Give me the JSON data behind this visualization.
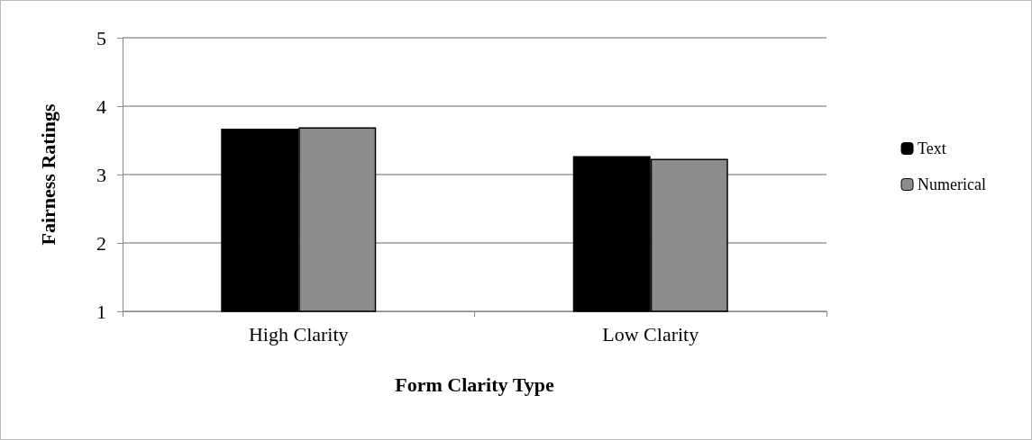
{
  "chart_data": {
    "type": "bar",
    "xlabel": "Form Clarity Type",
    "ylabel": "Fairness Ratings",
    "categories": [
      "High Clarity",
      "Low Clarity"
    ],
    "series": [
      {
        "name": "Text",
        "color": "#000000",
        "values": [
          3.67,
          3.27
        ]
      },
      {
        "name": "Numerical",
        "color": "#8c8c8c",
        "values": [
          3.69,
          3.23
        ]
      }
    ],
    "ylim": [
      1,
      5
    ],
    "yticks": [
      1,
      2,
      3,
      4,
      5
    ],
    "grid": "y",
    "legend": "right"
  }
}
